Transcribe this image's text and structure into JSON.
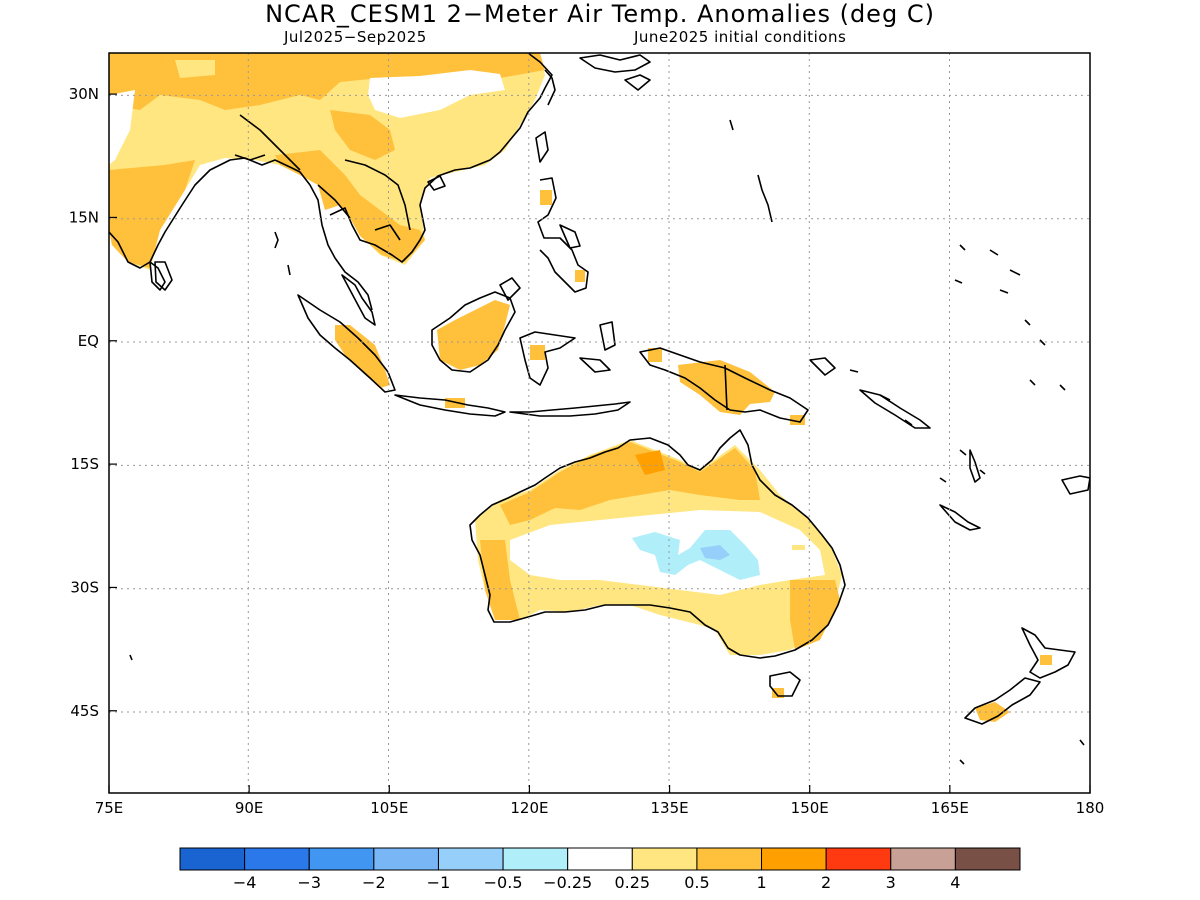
{
  "title": "NCAR_CESM1 2−Meter Air Temp. Anomalies (deg C)",
  "subtitle_left": "Jul2025−Sep2025",
  "subtitle_right": "June2025 initial conditions",
  "map": {
    "lon_range": [
      75,
      180
    ],
    "lat_range": [
      -55,
      35
    ],
    "lon_ticks": [
      {
        "value": 75,
        "label": "75E"
      },
      {
        "value": 90,
        "label": "90E"
      },
      {
        "value": 105,
        "label": "105E"
      },
      {
        "value": 120,
        "label": "120E"
      },
      {
        "value": 135,
        "label": "135E"
      },
      {
        "value": 150,
        "label": "150E"
      },
      {
        "value": 165,
        "label": "165E"
      },
      {
        "value": 180,
        "label": "180"
      }
    ],
    "lat_ticks": [
      {
        "value": 30,
        "label": "30N"
      },
      {
        "value": 15,
        "label": "15N"
      },
      {
        "value": 0,
        "label": "EQ"
      },
      {
        "value": -15,
        "label": "15S"
      },
      {
        "value": -30,
        "label": "30S"
      },
      {
        "value": -45,
        "label": "45S"
      }
    ],
    "grid": "dotted"
  },
  "colorbar": {
    "colors": [
      "#1a64d2",
      "#2b78ea",
      "#4196f2",
      "#78b6f6",
      "#96d0fa",
      "#b0eefa",
      "#ffffff",
      "#ffe680",
      "#ffc03c",
      "#ffa000",
      "#ff3a10",
      "#c8a096",
      "#785046"
    ],
    "labels": [
      "−4",
      "−3",
      "−2",
      "−1",
      "−0.5",
      "−0.25",
      "0.25",
      "0.5",
      "1",
      "2",
      "3",
      "4"
    ]
  }
}
